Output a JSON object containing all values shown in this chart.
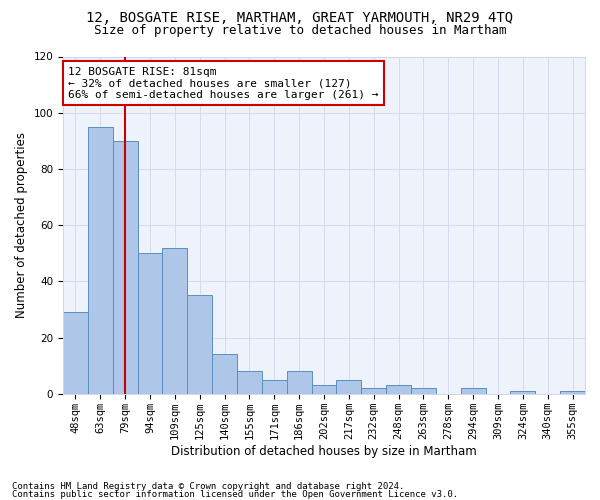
{
  "title1": "12, BOSGATE RISE, MARTHAM, GREAT YARMOUTH, NR29 4TQ",
  "title2": "Size of property relative to detached houses in Martham",
  "xlabel": "Distribution of detached houses by size in Martham",
  "ylabel": "Number of detached properties",
  "categories": [
    "48sqm",
    "63sqm",
    "79sqm",
    "94sqm",
    "109sqm",
    "125sqm",
    "140sqm",
    "155sqm",
    "171sqm",
    "186sqm",
    "202sqm",
    "217sqm",
    "232sqm",
    "248sqm",
    "263sqm",
    "278sqm",
    "294sqm",
    "309sqm",
    "324sqm",
    "340sqm",
    "355sqm"
  ],
  "values": [
    29,
    95,
    90,
    50,
    52,
    35,
    14,
    8,
    5,
    8,
    3,
    5,
    2,
    3,
    2,
    0,
    2,
    0,
    1,
    0,
    1
  ],
  "bar_color": "#aec6e8",
  "bar_edge_color": "#5a8fc0",
  "highlight_index": 2,
  "highlight_line_color": "#cc0000",
  "annotation_line1": "12 BOSGATE RISE: 81sqm",
  "annotation_line2": "← 32% of detached houses are smaller (127)",
  "annotation_line3": "66% of semi-detached houses are larger (261) →",
  "annotation_box_color": "#ffffff",
  "annotation_box_edge_color": "#cc0000",
  "ylim": [
    0,
    120
  ],
  "yticks": [
    0,
    20,
    40,
    60,
    80,
    100,
    120
  ],
  "grid_color": "#d0d8e8",
  "background_color": "#ffffff",
  "plot_bg_color": "#eef2fb",
  "footer1": "Contains HM Land Registry data © Crown copyright and database right 2024.",
  "footer2": "Contains public sector information licensed under the Open Government Licence v3.0.",
  "title1_fontsize": 10,
  "title2_fontsize": 9,
  "xlabel_fontsize": 8.5,
  "ylabel_fontsize": 8.5,
  "tick_fontsize": 7.5,
  "annotation_fontsize": 8,
  "footer_fontsize": 6.5
}
